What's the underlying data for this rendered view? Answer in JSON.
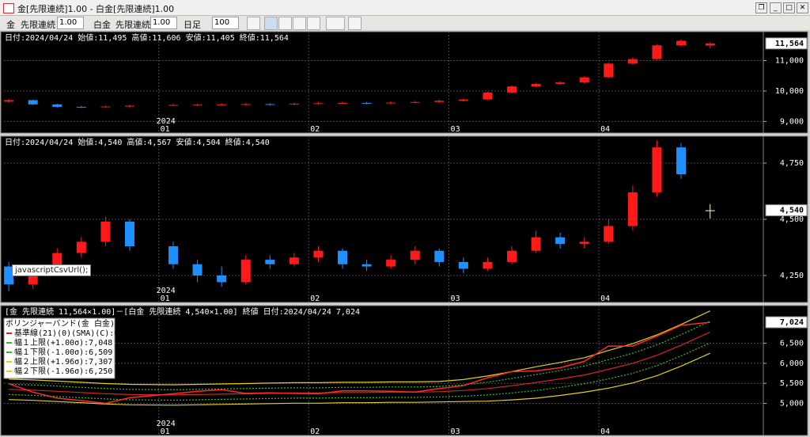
{
  "window": {
    "title": "金[先限連続]1.00 - 白金[先限連続]1.00",
    "toolbar": {
      "symbol1": "金",
      "contract1": "先限連続",
      "mult1": "1.00",
      "symbol2": "白金",
      "contract2": "先限連続",
      "mult2": "1.00",
      "period": "日足",
      "count": "100"
    }
  },
  "tooltip": "javascriptCsvUrl();",
  "chart_data": [
    {
      "type": "candlestick",
      "info": "日付:2024/04/24 始値:11,495 高値:11,606 安値:11,405 終値:11,564",
      "x": [
        "2023-12-01",
        "2023-12-06",
        "2023-12-11",
        "2023-12-16",
        "2023-12-21",
        "2023-12-26",
        "2024-01-04",
        "2024-01-09",
        "2024-01-14",
        "2024-01-19",
        "2024-01-24",
        "2024-01-29",
        "2024-02-03",
        "2024-02-08",
        "2024-02-13",
        "2024-02-18",
        "2024-02-23",
        "2024-02-28",
        "2024-03-04",
        "2024-03-09",
        "2024-03-14",
        "2024-03-19",
        "2024-03-24",
        "2024-03-29",
        "2024-04-03",
        "2024-04-08",
        "2024-04-13",
        "2024-04-18",
        "2024-04-24"
      ],
      "open": [
        9650,
        9700,
        9560,
        9480,
        9470,
        9490,
        9520,
        9540,
        9550,
        9560,
        9570,
        9560,
        9580,
        9600,
        9610,
        9600,
        9620,
        9640,
        9680,
        9720,
        9950,
        10150,
        10230,
        10280,
        10450,
        10900,
        11050,
        11500,
        11495
      ],
      "high": [
        9740,
        9720,
        9580,
        9510,
        9520,
        9550,
        9580,
        9590,
        9600,
        9610,
        9600,
        9620,
        9640,
        9650,
        9640,
        9660,
        9680,
        9720,
        9760,
        9980,
        10190,
        10270,
        10320,
        10490,
        10940,
        11100,
        11540,
        11700,
        11606
      ],
      "low": [
        9620,
        9540,
        9450,
        9440,
        9450,
        9470,
        9500,
        9510,
        9520,
        9530,
        9530,
        9540,
        9550,
        9570,
        9570,
        9580,
        9600,
        9610,
        9650,
        9700,
        9920,
        10120,
        10200,
        10250,
        10420,
        10860,
        11020,
        11460,
        11405
      ],
      "close": [
        9700,
        9560,
        9480,
        9470,
        9490,
        9520,
        9540,
        9550,
        9560,
        9570,
        9560,
        9580,
        9600,
        9610,
        9600,
        9620,
        9640,
        9680,
        9720,
        9950,
        10150,
        10230,
        10280,
        10450,
        10900,
        11050,
        11500,
        11650,
        11564
      ],
      "up_color": "#ff1a1a",
      "down_color": "#1e90ff",
      "xlim": [
        "2023-11-30",
        "2024-05-05"
      ],
      "xticks": [
        {
          "value": "2024-01",
          "label": "01"
        },
        {
          "value": "2024-02",
          "label": "02"
        },
        {
          "value": "2024-03",
          "label": "03"
        },
        {
          "value": "2024-04",
          "label": "04"
        }
      ],
      "year_label": "2024",
      "ylim": [
        8620,
        11950
      ],
      "yticks": [
        {
          "value": 9000,
          "label": "9,000"
        },
        {
          "value": 10000,
          "label": "10,000"
        },
        {
          "value": 11000,
          "label": "11,000"
        }
      ],
      "last_label": "11,564",
      "grid": true
    },
    {
      "type": "candlestick",
      "info": "日付:2024/04/24 始値:4,540 高値:4,567 安値:4,504 終値:4,540",
      "x": [
        "2023-12-01",
        "2023-12-06",
        "2023-12-11",
        "2023-12-16",
        "2023-12-21",
        "2023-12-26",
        "2024-01-04",
        "2024-01-09",
        "2024-01-14",
        "2024-01-19",
        "2024-01-24",
        "2024-01-29",
        "2024-02-03",
        "2024-02-08",
        "2024-02-13",
        "2024-02-18",
        "2024-02-23",
        "2024-02-28",
        "2024-03-04",
        "2024-03-09",
        "2024-03-14",
        "2024-03-19",
        "2024-03-24",
        "2024-03-29",
        "2024-04-03",
        "2024-04-08",
        "2024-04-13",
        "2024-04-18",
        "2024-04-24"
      ],
      "open": [
        4290,
        4210,
        4280,
        4350,
        4400,
        4490,
        4380,
        4300,
        4250,
        4220,
        4320,
        4300,
        4330,
        4360,
        4300,
        4290,
        4320,
        4360,
        4310,
        4280,
        4310,
        4360,
        4420,
        4390,
        4400,
        4470,
        4620,
        4820,
        4540
      ],
      "high": [
        4310,
        4300,
        4370,
        4420,
        4510,
        4500,
        4400,
        4320,
        4290,
        4340,
        4340,
        4350,
        4380,
        4370,
        4320,
        4340,
        4380,
        4370,
        4330,
        4330,
        4380,
        4450,
        4440,
        4420,
        4500,
        4650,
        4850,
        4840,
        4567
      ],
      "low": [
        4180,
        4190,
        4260,
        4330,
        4380,
        4360,
        4280,
        4220,
        4200,
        4210,
        4280,
        4290,
        4310,
        4280,
        4270,
        4280,
        4300,
        4290,
        4260,
        4270,
        4300,
        4350,
        4370,
        4370,
        4390,
        4450,
        4600,
        4680,
        4504
      ],
      "close": [
        4210,
        4280,
        4350,
        4400,
        4490,
        4380,
        4300,
        4250,
        4220,
        4320,
        4300,
        4330,
        4360,
        4300,
        4290,
        4320,
        4360,
        4310,
        4280,
        4310,
        4360,
        4420,
        4390,
        4400,
        4470,
        4620,
        4820,
        4700,
        4540
      ],
      "up_color": "#ff1a1a",
      "down_color": "#1e90ff",
      "xlim": [
        "2023-11-30",
        "2024-05-05"
      ],
      "xticks": [
        {
          "value": "2024-01",
          "label": "01"
        },
        {
          "value": "2024-02",
          "label": "02"
        },
        {
          "value": "2024-03",
          "label": "03"
        },
        {
          "value": "2024-04",
          "label": "04"
        }
      ],
      "year_label": "2024",
      "ylim": [
        4130,
        4870
      ],
      "yticks": [
        {
          "value": 4250,
          "label": "4,250"
        },
        {
          "value": 4500,
          "label": "4,500"
        },
        {
          "value": 4750,
          "label": "4,750"
        }
      ],
      "last_label": "4,540",
      "grid": true
    },
    {
      "type": "line",
      "info": "[金 先限連続 11,564×1.00]－[白金 先限連続 4,540×1.00] 終値 日付:2024/04/24 7,024",
      "legend_title": "ボリンジャーバンド(金 白金)△✕",
      "x": [
        "2023-12-01",
        "2023-12-06",
        "2023-12-11",
        "2023-12-16",
        "2023-12-21",
        "2023-12-26",
        "2024-01-04",
        "2024-01-09",
        "2024-01-14",
        "2024-01-19",
        "2024-01-24",
        "2024-01-29",
        "2024-02-03",
        "2024-02-08",
        "2024-02-13",
        "2024-02-18",
        "2024-02-23",
        "2024-02-28",
        "2024-03-04",
        "2024-03-09",
        "2024-03-14",
        "2024-03-19",
        "2024-03-24",
        "2024-03-29",
        "2024-04-03",
        "2024-04-08",
        "2024-04-13",
        "2024-04-18",
        "2024-04-24"
      ],
      "close_series": {
        "color": "#ff2a2a",
        "values": [
          5490,
          5280,
          5130,
          5070,
          5000,
          5140,
          5240,
          5300,
          5340,
          5250,
          5260,
          5250,
          5240,
          5310,
          5310,
          5300,
          5280,
          5370,
          5440,
          5640,
          5790,
          5810,
          5890,
          6050,
          6430,
          6430,
          6680,
          6950,
          7024
        ]
      },
      "series": [
        {
          "name": "基準線(21)(0)(SMA)(C):6,779",
          "color": "#d02828",
          "dash": false,
          "values": [
            5350,
            5330,
            5300,
            5270,
            5240,
            5220,
            5210,
            5220,
            5230,
            5240,
            5250,
            5260,
            5260,
            5270,
            5270,
            5280,
            5280,
            5290,
            5320,
            5370,
            5440,
            5520,
            5610,
            5710,
            5850,
            6000,
            6200,
            6450,
            6779
          ]
        },
        {
          "name": "幅１上限(+1.00σ):7,048",
          "color": "#2fbf2f",
          "dash": true,
          "values": [
            5480,
            5460,
            5430,
            5400,
            5370,
            5350,
            5340,
            5350,
            5360,
            5370,
            5380,
            5390,
            5390,
            5400,
            5400,
            5410,
            5410,
            5420,
            5460,
            5530,
            5620,
            5720,
            5820,
            5930,
            6090,
            6250,
            6460,
            6715,
            7048
          ]
        },
        {
          "name": "幅１下限(-1.00σ):6,509",
          "color": "#2fbf2f",
          "dash": true,
          "values": [
            5220,
            5200,
            5170,
            5140,
            5110,
            5090,
            5080,
            5090,
            5100,
            5110,
            5120,
            5130,
            5130,
            5140,
            5140,
            5150,
            5150,
            5160,
            5180,
            5210,
            5260,
            5320,
            5400,
            5490,
            5610,
            5750,
            5940,
            6185,
            6509
          ]
        },
        {
          "name": "幅２上限(+1.96σ):7,307",
          "color": "#e0cf1c",
          "dash": false,
          "values": [
            5605,
            5585,
            5555,
            5525,
            5495,
            5475,
            5465,
            5475,
            5485,
            5495,
            5505,
            5515,
            5515,
            5525,
            5525,
            5535,
            5535,
            5545,
            5594,
            5684,
            5793,
            5912,
            6022,
            6141,
            6320,
            6490,
            6710,
            6969,
            7307
          ]
        },
        {
          "name": "幅２下限(-1.96σ):6,250",
          "color": "#e0cf1c",
          "dash": false,
          "values": [
            5095,
            5075,
            5045,
            5015,
            4985,
            4965,
            4955,
            4965,
            4975,
            4985,
            4995,
            5005,
            5005,
            5015,
            5015,
            5025,
            5025,
            5035,
            5046,
            5056,
            5087,
            5128,
            5198,
            5279,
            5380,
            5510,
            5690,
            5931,
            6250
          ]
        }
      ],
      "xlim": [
        "2023-11-30",
        "2024-05-05"
      ],
      "xticks": [
        {
          "value": "2024-01",
          "label": "01"
        },
        {
          "value": "2024-02",
          "label": "02"
        },
        {
          "value": "2024-03",
          "label": "03"
        },
        {
          "value": "2024-04",
          "label": "04"
        }
      ],
      "year_label": "2024",
      "ylim": [
        4200,
        7440
      ],
      "yticks": [
        {
          "value": 5000,
          "label": "5,000"
        },
        {
          "value": 5500,
          "label": "5,500"
        },
        {
          "value": 6000,
          "label": "6,000"
        },
        {
          "value": 6500,
          "label": "6,500"
        }
      ],
      "last_label": "7,024",
      "grid": true
    }
  ]
}
